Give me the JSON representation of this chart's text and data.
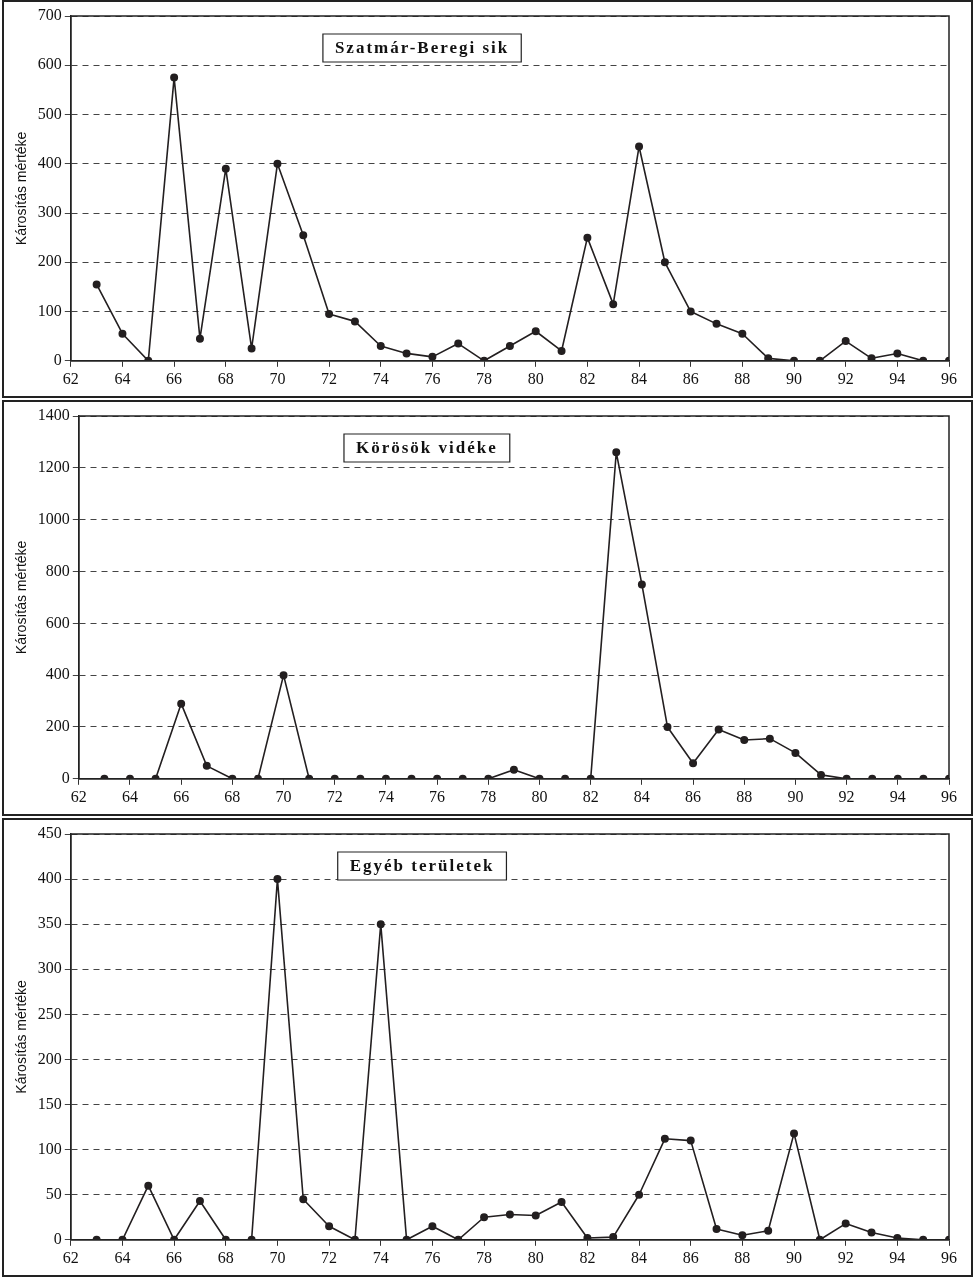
{
  "chart_data": [
    {
      "type": "line",
      "title": "Szatmár-Beregi sik",
      "ylabel": "Károsítás mértéke",
      "x": [
        63,
        64,
        65,
        66,
        67,
        68,
        69,
        70,
        71,
        72,
        73,
        74,
        75,
        76,
        77,
        78,
        79,
        80,
        81,
        82,
        83,
        84,
        85,
        86,
        87,
        88,
        89,
        90,
        91,
        92,
        93,
        94,
        95,
        96
      ],
      "series": [
        {
          "color": "#231f20",
          "values": [
            155,
            55,
            0,
            575,
            45,
            390,
            25,
            400,
            255,
            95,
            80,
            30,
            15,
            8,
            35,
            0,
            30,
            60,
            20,
            250,
            115,
            435,
            200,
            100,
            75,
            55,
            5,
            0,
            0,
            40,
            5,
            15,
            0,
            0
          ]
        }
      ],
      "xlim": [
        62,
        96
      ],
      "xticks": [
        62,
        64,
        66,
        68,
        70,
        72,
        74,
        76,
        78,
        80,
        82,
        84,
        86,
        88,
        90,
        92,
        94,
        96
      ],
      "ylim": [
        0,
        700
      ],
      "yticks": [
        0,
        100,
        200,
        300,
        400,
        500,
        600,
        700
      ],
      "grid": "y",
      "legend": false,
      "marker": "circle",
      "line_style": "solid"
    },
    {
      "type": "line",
      "title": "Körösök vidéke",
      "ylabel": "Károsítás mértéke",
      "x": [
        63,
        64,
        65,
        66,
        67,
        68,
        69,
        70,
        71,
        72,
        73,
        74,
        75,
        76,
        77,
        78,
        79,
        80,
        81,
        82,
        83,
        84,
        85,
        86,
        87,
        88,
        89,
        90,
        91,
        92,
        93,
        94,
        95,
        96
      ],
      "series": [
        {
          "color": "#231f20",
          "values": [
            0,
            0,
            0,
            290,
            50,
            0,
            0,
            400,
            0,
            0,
            0,
            0,
            0,
            0,
            0,
            0,
            35,
            0,
            0,
            0,
            1260,
            750,
            200,
            60,
            190,
            150,
            155,
            100,
            15,
            0,
            0,
            0,
            0,
            0
          ]
        }
      ],
      "xlim": [
        62,
        96
      ],
      "xticks": [
        62,
        64,
        66,
        68,
        70,
        72,
        74,
        76,
        78,
        80,
        82,
        84,
        86,
        88,
        90,
        92,
        94,
        96
      ],
      "ylim": [
        0,
        1400
      ],
      "yticks": [
        0,
        200,
        400,
        600,
        800,
        1000,
        1200,
        1400
      ],
      "grid": "y",
      "legend": false,
      "marker": "circle",
      "line_style": "solid"
    },
    {
      "type": "line",
      "title": "Egyéb területek",
      "ylabel": "Károsítás mértéke",
      "x": [
        63,
        64,
        65,
        66,
        67,
        68,
        69,
        70,
        71,
        72,
        73,
        74,
        75,
        76,
        77,
        78,
        79,
        80,
        81,
        82,
        83,
        84,
        85,
        86,
        87,
        88,
        89,
        90,
        91,
        92,
        93,
        94,
        95,
        96
      ],
      "series": [
        {
          "color": "#231f20",
          "values": [
            0,
            0,
            60,
            0,
            43,
            0,
            0,
            400,
            45,
            15,
            0,
            350,
            0,
            15,
            0,
            25,
            28,
            27,
            42,
            2,
            3,
            50,
            112,
            110,
            12,
            5,
            10,
            118,
            0,
            18,
            8,
            2,
            0,
            0
          ]
        }
      ],
      "xlim": [
        62,
        96
      ],
      "xticks": [
        62,
        64,
        66,
        68,
        70,
        72,
        74,
        76,
        78,
        80,
        82,
        84,
        86,
        88,
        90,
        92,
        94,
        96
      ],
      "ylim": [
        0,
        450
      ],
      "yticks": [
        0,
        50,
        100,
        150,
        200,
        250,
        300,
        350,
        400,
        450
      ],
      "grid": "y",
      "legend": false,
      "marker": "circle",
      "line_style": "solid"
    }
  ]
}
